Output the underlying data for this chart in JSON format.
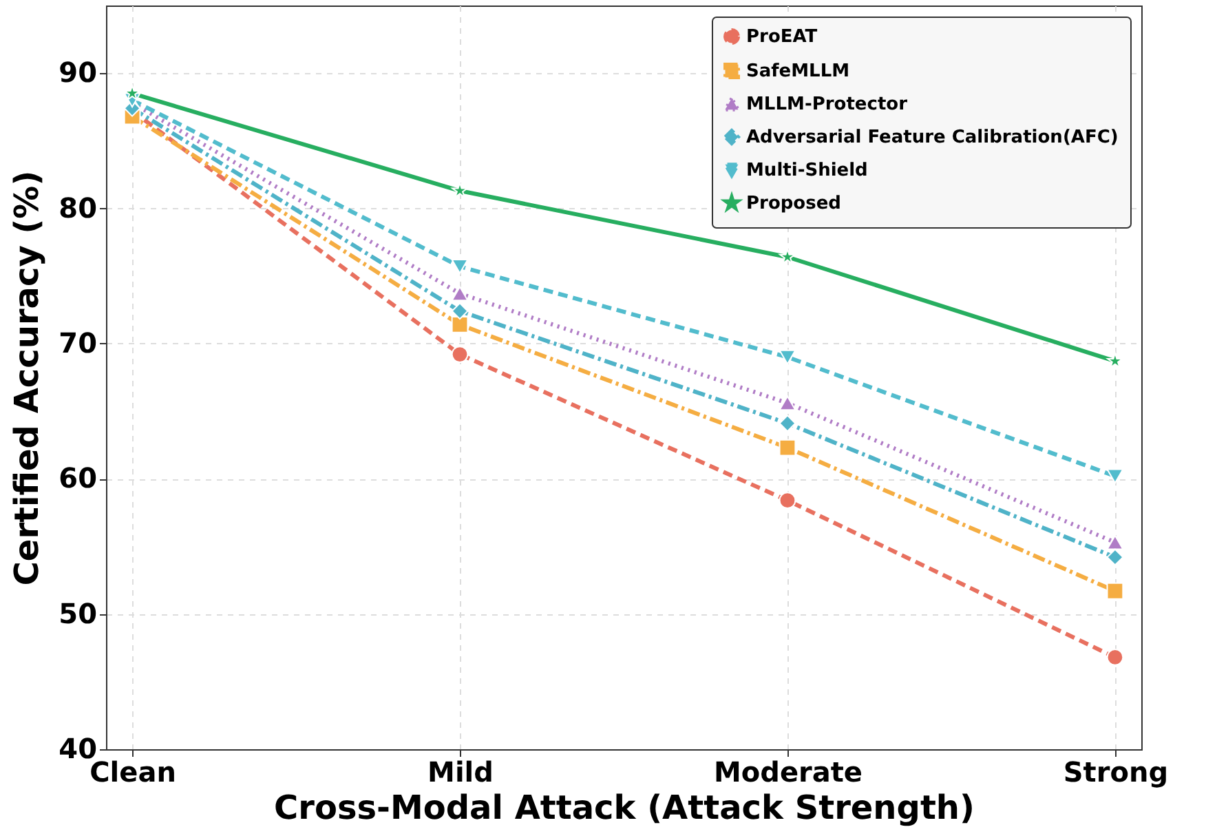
{
  "chart_data": {
    "type": "line",
    "xlabel": "Cross-Modal Attack (Attack Strength)",
    "ylabel": "Certified Accuracy (%)",
    "categories": [
      "Clean",
      "Mild",
      "Moderate",
      "Strong"
    ],
    "ylim": [
      40,
      95
    ],
    "yticks": [
      40,
      50,
      60,
      70,
      80,
      90
    ],
    "grid": true,
    "legend": "top right",
    "series": [
      {
        "name": "ProEAT",
        "color": "#e8705f",
        "marker": "circle",
        "line_style": "dashed",
        "values": [
          87.2,
          69.2,
          58.4,
          46.8
        ]
      },
      {
        "name": "SafeMLLM",
        "color": "#f5ad42",
        "marker": "square",
        "line_style": "dashdot",
        "values": [
          86.8,
          71.4,
          62.3,
          51.7
        ]
      },
      {
        "name": "MLLM-Protector",
        "color": "#b07cc6",
        "marker": "triangle",
        "line_style": "dotted",
        "values": [
          87.8,
          73.7,
          65.6,
          55.3
        ]
      },
      {
        "name": "Adversarial Feature Calibration(AFC)",
        "color": "#4fb3c8",
        "marker": "diamond",
        "line_style": "dashdot",
        "values": [
          87.4,
          72.4,
          64.1,
          54.2
        ]
      },
      {
        "name": "Multi-Shield",
        "color": "#52bccd",
        "marker": "triangle-down",
        "line_style": "dashed",
        "values": [
          88.0,
          75.7,
          69.0,
          60.2
        ]
      },
      {
        "name": "Proposed",
        "color": "#27ae60",
        "marker": "star",
        "line_style": "solid",
        "values": [
          88.5,
          81.3,
          76.4,
          68.7
        ]
      }
    ]
  }
}
